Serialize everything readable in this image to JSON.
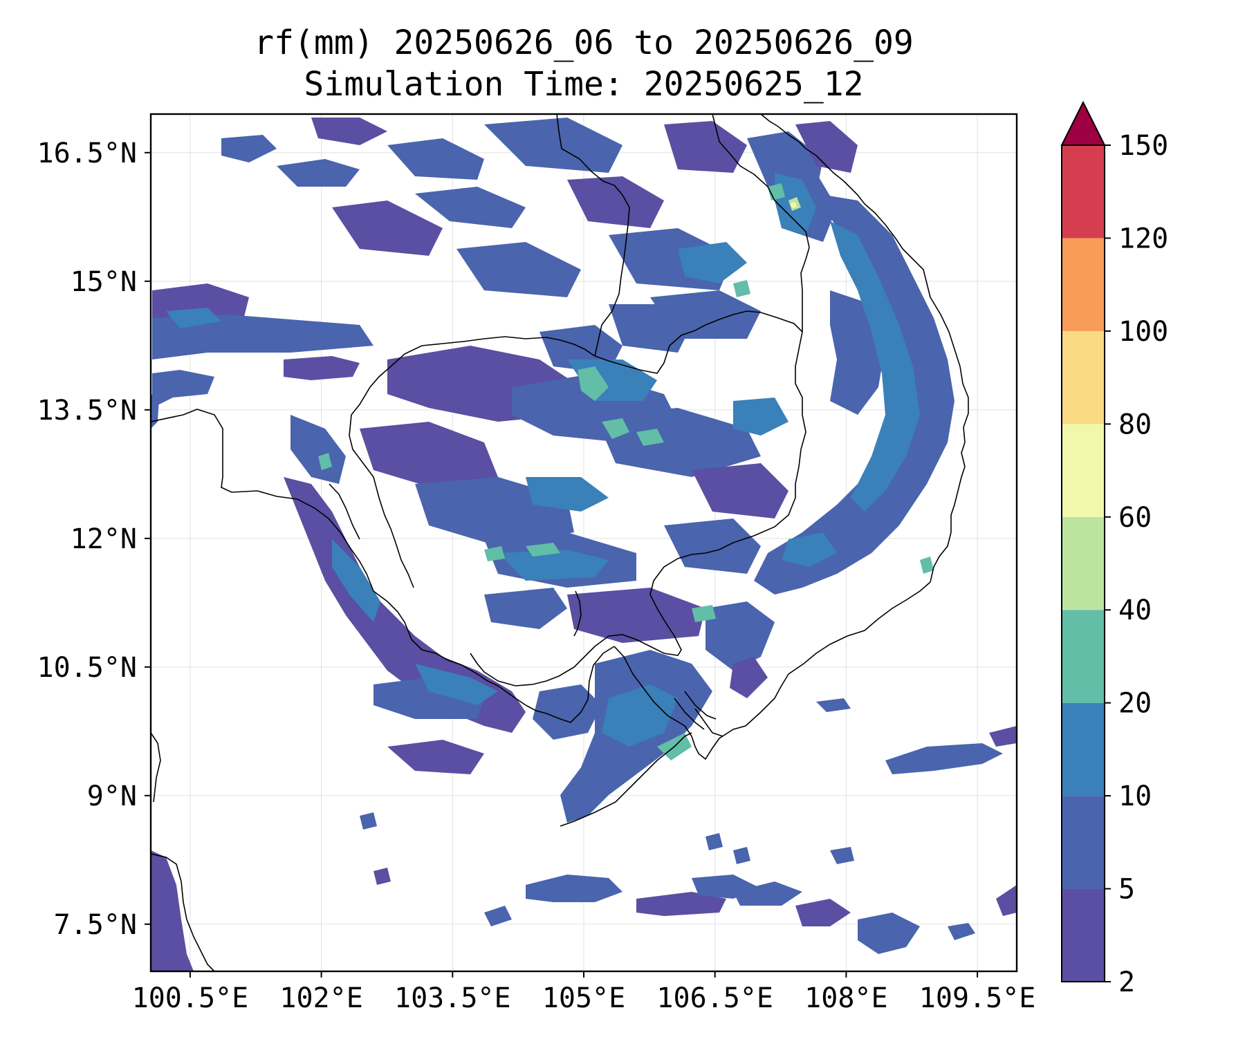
{
  "title_line1": "rf(mm) 20250626_06 to 20250626_09",
  "title_line2": "Simulation Time: 20250625_12",
  "map": {
    "lon_range": [
      100.05,
      109.95
    ],
    "lat_range": [
      6.95,
      16.95
    ],
    "lon_ticks": [
      {
        "value": 100.5,
        "label": "100.5°E"
      },
      {
        "value": 102,
        "label": "102°E"
      },
      {
        "value": 103.5,
        "label": "103.5°E"
      },
      {
        "value": 105,
        "label": "105°E"
      },
      {
        "value": 106.5,
        "label": "106.5°E"
      },
      {
        "value": 108,
        "label": "108°E"
      },
      {
        "value": 109.5,
        "label": "109.5°E"
      }
    ],
    "lat_ticks": [
      {
        "value": 16.5,
        "label": "16.5°N"
      },
      {
        "value": 15,
        "label": "15°N"
      },
      {
        "value": 13.5,
        "label": "13.5°N"
      },
      {
        "value": 12,
        "label": "12°N"
      },
      {
        "value": 10.5,
        "label": "10.5°N"
      },
      {
        "value": 9,
        "label": "9°N"
      },
      {
        "value": 7.5,
        "label": "7.5°N"
      }
    ],
    "grid": true
  },
  "colorbar": {
    "levels": [
      2,
      5,
      10,
      20,
      40,
      60,
      80,
      100,
      120,
      150
    ],
    "colors": [
      "#5a4fa2",
      "#4a64ad",
      "#3a80b9",
      "#62bea6",
      "#bde3a0",
      "#f2f8aa",
      "#fbda84",
      "#f89c58",
      "#d53e4f",
      "#9e0142"
    ],
    "extend": "max"
  },
  "rainfall_colors": {
    "level_2_5": "#5a4fa2",
    "level_5_10": "#4a64ad",
    "level_10_20": "#3a80b9",
    "level_20_40": "#62bea6",
    "level_40_60": "#bde3a0",
    "level_60_80": "#f2f8aa"
  }
}
